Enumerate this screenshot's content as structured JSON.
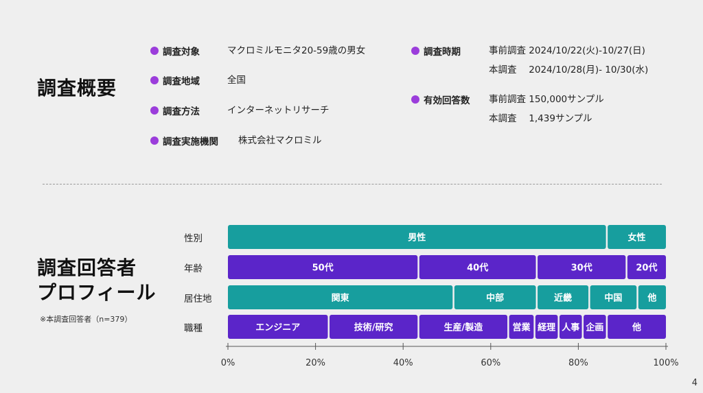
{
  "overview": {
    "title": "調査概要",
    "left": [
      {
        "label": "調査対象",
        "value": "マクロミルモニタ20-59歳の男女"
      },
      {
        "label": "調査地域",
        "value": "全国"
      },
      {
        "label": "調査方法",
        "value": "インターネットリサーチ"
      },
      {
        "label": "調査実施機関",
        "value": "株式会社マクロミル"
      }
    ],
    "right": [
      {
        "label": "調査時期",
        "lines": [
          "事前調査 2024/10/22(火)-10/27(日)",
          "本調査　 2024/10/28(月)- 10/30(水)"
        ]
      },
      {
        "label": "有効回答数",
        "lines": [
          "事前調査 150,000サンプル",
          "本調査　 1,439サンプル"
        ]
      }
    ]
  },
  "profile": {
    "title_line1": "調査回答者",
    "title_line2": "プロフィール",
    "note": "※本調査回答者（n=379）"
  },
  "colors": {
    "teal": "#179e9e",
    "purple": "#5b25c9",
    "dot": "#9b3ddb"
  },
  "chart_data": {
    "type": "bar",
    "orientation": "horizontal-stacked-100",
    "categories": [
      "性別",
      "年齢",
      "居住地",
      "職種"
    ],
    "rows": [
      {
        "name": "性別",
        "color": "teal",
        "segments": [
          {
            "label": "男性",
            "value": 86.5
          },
          {
            "label": "女性",
            "value": 13.5
          }
        ]
      },
      {
        "name": "年齢",
        "color": "purple",
        "segments": [
          {
            "label": "50代",
            "value": 43.5
          },
          {
            "label": "40代",
            "value": 27
          },
          {
            "label": "30代",
            "value": 20.5
          },
          {
            "label": "20代",
            "value": 9
          }
        ]
      },
      {
        "name": "居住地",
        "color": "teal",
        "segments": [
          {
            "label": "関東",
            "value": 51.5
          },
          {
            "label": "中部",
            "value": 19
          },
          {
            "label": "近畿",
            "value": 12
          },
          {
            "label": "中国",
            "value": 11
          },
          {
            "label": "他",
            "value": 6.5
          }
        ]
      },
      {
        "name": "職種",
        "color": "purple",
        "segments": [
          {
            "label": "エンジニア",
            "value": 23
          },
          {
            "label": "技術/研究",
            "value": 20.5
          },
          {
            "label": "生産/製造",
            "value": 20.5
          },
          {
            "label": "営業",
            "value": 6
          },
          {
            "label": "経理",
            "value": 5.5
          },
          {
            "label": "人事",
            "value": 5.5
          },
          {
            "label": "企画",
            "value": 5.5
          },
          {
            "label": "他",
            "value": 13.5
          }
        ]
      }
    ],
    "xticks": [
      "0%",
      "20%",
      "40%",
      "60%",
      "80%",
      "100%"
    ],
    "xlim": [
      0,
      100
    ]
  },
  "page_number": "4"
}
